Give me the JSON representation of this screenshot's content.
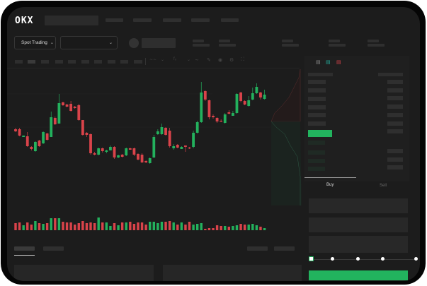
{
  "header": {
    "logo": "OKX"
  },
  "toolbar": {
    "market_selector": "Spot Trading"
  },
  "trade_panel": {
    "buy_tab": "Buy",
    "sell_tab": "Sell"
  },
  "colors": {
    "up": "#23b15d",
    "down": "#d9434a",
    "accent": "#22b35e",
    "background": "#1c1c1c"
  },
  "icons": [
    "chevron-down-icon",
    "order-book-both-icon",
    "order-book-bids-icon",
    "order-book-asks-icon",
    "indicator-icon",
    "draw-icon",
    "camera-icon",
    "settings-icon",
    "fullscreen-icon"
  ],
  "order_form": {
    "slider_percent": 0
  },
  "chart_data": {
    "type": "candlestick",
    "candles": [
      [
        68,
        70,
        64,
        65
      ],
      [
        68,
        70,
        58,
        59
      ],
      [
        57,
        59,
        57,
        59
      ],
      [
        58,
        64,
        43,
        44
      ],
      [
        43,
        44,
        38,
        40
      ],
      [
        37,
        51,
        36,
        50
      ],
      [
        52,
        53,
        43,
        44
      ],
      [
        48,
        65,
        47,
        64
      ],
      [
        62,
        63,
        52,
        53
      ],
      [
        57,
        93,
        57,
        85
      ],
      [
        84,
        86,
        74,
        75
      ],
      [
        76,
        118,
        76,
        105
      ],
      [
        106,
        107,
        101,
        102
      ],
      [
        103,
        104,
        99,
        100
      ],
      [
        104,
        108,
        93,
        94
      ],
      [
        100,
        101,
        97,
        98
      ],
      [
        102,
        104,
        80,
        81
      ],
      [
        81,
        81,
        59,
        60
      ],
      [
        63,
        64,
        57,
        60
      ],
      [
        61,
        62,
        32,
        34
      ],
      [
        34,
        36,
        31,
        32
      ],
      [
        32,
        42,
        31,
        41
      ],
      [
        41,
        42,
        35,
        37
      ],
      [
        36,
        39,
        34,
        38
      ],
      [
        38,
        45,
        38,
        43
      ],
      [
        43,
        44,
        26,
        28
      ],
      [
        28,
        32,
        27,
        31
      ],
      [
        32,
        33,
        28,
        29
      ],
      [
        31,
        42,
        30,
        41
      ],
      [
        41,
        42,
        39,
        39
      ],
      [
        41,
        42,
        30,
        32
      ],
      [
        33,
        34,
        24,
        25
      ],
      [
        32,
        34,
        20,
        21
      ],
      [
        23,
        24,
        20,
        21
      ],
      [
        20,
        28,
        19,
        27
      ],
      [
        28,
        60,
        27,
        57
      ],
      [
        61,
        68,
        60,
        65
      ],
      [
        61,
        76,
        60,
        71
      ],
      [
        70,
        71,
        59,
        60
      ],
      [
        66,
        70,
        42,
        44
      ],
      [
        41,
        47,
        39,
        44
      ],
      [
        46,
        47,
        41,
        42
      ],
      [
        40,
        44,
        40,
        43
      ],
      [
        45,
        45,
        36,
        43
      ],
      [
        42,
        43,
        40,
        41
      ],
      [
        43,
        66,
        41,
        63
      ],
      [
        63,
        80,
        62,
        78
      ],
      [
        78,
        135,
        77,
        120
      ],
      [
        122,
        123,
        108,
        110
      ],
      [
        109,
        110,
        82,
        85
      ],
      [
        87,
        89,
        83,
        85
      ],
      [
        84,
        85,
        77,
        79
      ],
      [
        80,
        82,
        78,
        79
      ],
      [
        77,
        91,
        76,
        89
      ],
      [
        92,
        95,
        89,
        90
      ],
      [
        87,
        94,
        87,
        91
      ],
      [
        91,
        119,
        90,
        118
      ],
      [
        120,
        121,
        106,
        108
      ],
      [
        108,
        109,
        102,
        103
      ],
      [
        101,
        115,
        100,
        109
      ],
      [
        110,
        127,
        109,
        119
      ],
      [
        119,
        133,
        118,
        128
      ],
      [
        120,
        121,
        110,
        113
      ],
      [
        111,
        124,
        110,
        117
      ]
    ],
    "volume": [
      10,
      11,
      7,
      11,
      8,
      13,
      10,
      9,
      10,
      17,
      17,
      17,
      12,
      11,
      11,
      8,
      10,
      13,
      10,
      11,
      10,
      18,
      11,
      11,
      6,
      10,
      7,
      11,
      11,
      12,
      9,
      11,
      11,
      8,
      12,
      12,
      10,
      12,
      12,
      13,
      11,
      8,
      11,
      8,
      12,
      8,
      9,
      10,
      2,
      3,
      3,
      7,
      6,
      6,
      5,
      6,
      7,
      9,
      8,
      8,
      9,
      7,
      5,
      3
    ]
  }
}
